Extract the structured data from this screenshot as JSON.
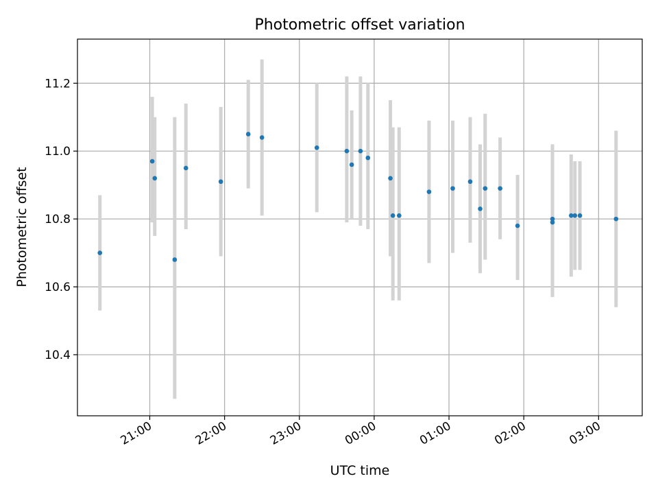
{
  "chart_data": {
    "type": "scatter",
    "title": "Photometric offset variation",
    "xlabel": "UTC time",
    "ylabel": "Photometric offset",
    "x_axis": "time",
    "xlim": [
      "20:02",
      "03:35"
    ],
    "ylim": [
      10.22,
      11.33
    ],
    "grid": true,
    "x_ticks": [
      "21:00",
      "22:00",
      "23:00",
      "00:00",
      "01:00",
      "02:00",
      "03:00"
    ],
    "y_ticks": [
      "10.4",
      "10.6",
      "10.8",
      "11.0",
      "11.2"
    ],
    "point_color": "#1f77b4",
    "errorbar_color": "#d3d3d3",
    "points": [
      {
        "t": "20:20",
        "y": 10.7,
        "lo": 10.53,
        "hi": 10.87
      },
      {
        "t": "21:02",
        "y": 10.97,
        "lo": 10.79,
        "hi": 11.16
      },
      {
        "t": "21:04",
        "y": 10.92,
        "lo": 10.75,
        "hi": 11.1
      },
      {
        "t": "21:20",
        "y": 10.68,
        "lo": 10.27,
        "hi": 11.1
      },
      {
        "t": "21:29",
        "y": 10.95,
        "lo": 10.77,
        "hi": 11.14
      },
      {
        "t": "21:57",
        "y": 10.91,
        "lo": 10.69,
        "hi": 11.13
      },
      {
        "t": "22:19",
        "y": 11.05,
        "lo": 10.89,
        "hi": 11.21
      },
      {
        "t": "22:30",
        "y": 11.04,
        "lo": 10.81,
        "hi": 11.27
      },
      {
        "t": "23:14",
        "y": 11.01,
        "lo": 10.82,
        "hi": 11.2
      },
      {
        "t": "23:38",
        "y": 11.0,
        "lo": 10.79,
        "hi": 11.22
      },
      {
        "t": "23:42",
        "y": 10.96,
        "lo": 10.8,
        "hi": 11.12
      },
      {
        "t": "23:49",
        "y": 11.0,
        "lo": 10.78,
        "hi": 11.22
      },
      {
        "t": "23:55",
        "y": 10.98,
        "lo": 10.77,
        "hi": 11.2
      },
      {
        "t": "00:13",
        "y": 10.92,
        "lo": 10.69,
        "hi": 11.15
      },
      {
        "t": "00:15",
        "y": 10.81,
        "lo": 10.56,
        "hi": 11.07
      },
      {
        "t": "00:20",
        "y": 10.81,
        "lo": 10.56,
        "hi": 11.07
      },
      {
        "t": "00:44",
        "y": 10.88,
        "lo": 10.67,
        "hi": 11.09
      },
      {
        "t": "01:03",
        "y": 10.89,
        "lo": 10.7,
        "hi": 11.09
      },
      {
        "t": "01:17",
        "y": 10.91,
        "lo": 10.73,
        "hi": 11.1
      },
      {
        "t": "01:25",
        "y": 10.83,
        "lo": 10.64,
        "hi": 11.02
      },
      {
        "t": "01:29",
        "y": 10.89,
        "lo": 10.68,
        "hi": 11.11
      },
      {
        "t": "01:41",
        "y": 10.89,
        "lo": 10.74,
        "hi": 11.04
      },
      {
        "t": "01:55",
        "y": 10.78,
        "lo": 10.62,
        "hi": 10.93
      },
      {
        "t": "02:23",
        "y": 10.8,
        "lo": 10.58,
        "hi": 11.02
      },
      {
        "t": "02:23",
        "y": 10.79,
        "lo": 10.57,
        "hi": 11.02
      },
      {
        "t": "02:38",
        "y": 10.81,
        "lo": 10.63,
        "hi": 10.99
      },
      {
        "t": "02:41",
        "y": 10.81,
        "lo": 10.65,
        "hi": 10.97
      },
      {
        "t": "02:45",
        "y": 10.81,
        "lo": 10.65,
        "hi": 10.97
      },
      {
        "t": "03:14",
        "y": 10.8,
        "lo": 10.54,
        "hi": 11.06
      }
    ]
  }
}
